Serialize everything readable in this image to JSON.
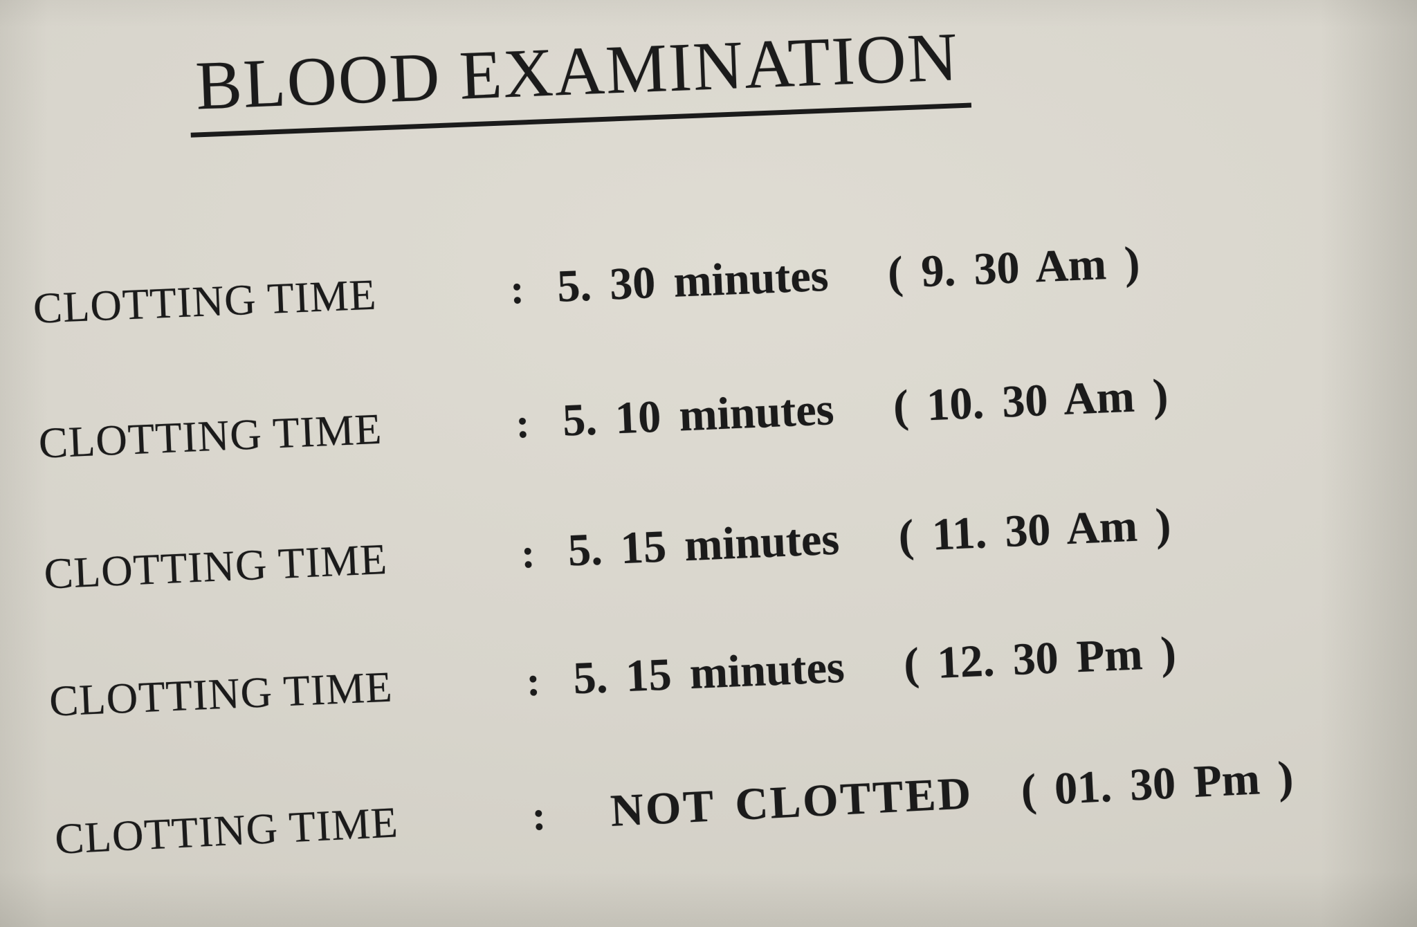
{
  "document": {
    "title": "BLOOD EXAMINATION",
    "paper_color": "#d8d5cc",
    "ink_color": "#1b1b1b",
    "rows": [
      {
        "label": "CLOTTING TIME",
        "separator": ":",
        "value": "5. 30 minutes",
        "time": "( 9. 30 Am )"
      },
      {
        "label": "CLOTTING TIME",
        "separator": ":",
        "value": "5. 10 minutes",
        "time": "( 10. 30 Am )"
      },
      {
        "label": "CLOTTING TIME",
        "separator": ":",
        "value": "5. 15 minutes",
        "time": "( 11. 30 Am )"
      },
      {
        "label": "CLOTTING TIME",
        "separator": ":",
        "value": "5. 15 minutes",
        "time": "( 12. 30 Pm )"
      },
      {
        "label": "CLOTTING TIME",
        "separator": ":",
        "value": "NOT CLOTTED",
        "time": "( 01. 30 Pm )"
      }
    ]
  }
}
